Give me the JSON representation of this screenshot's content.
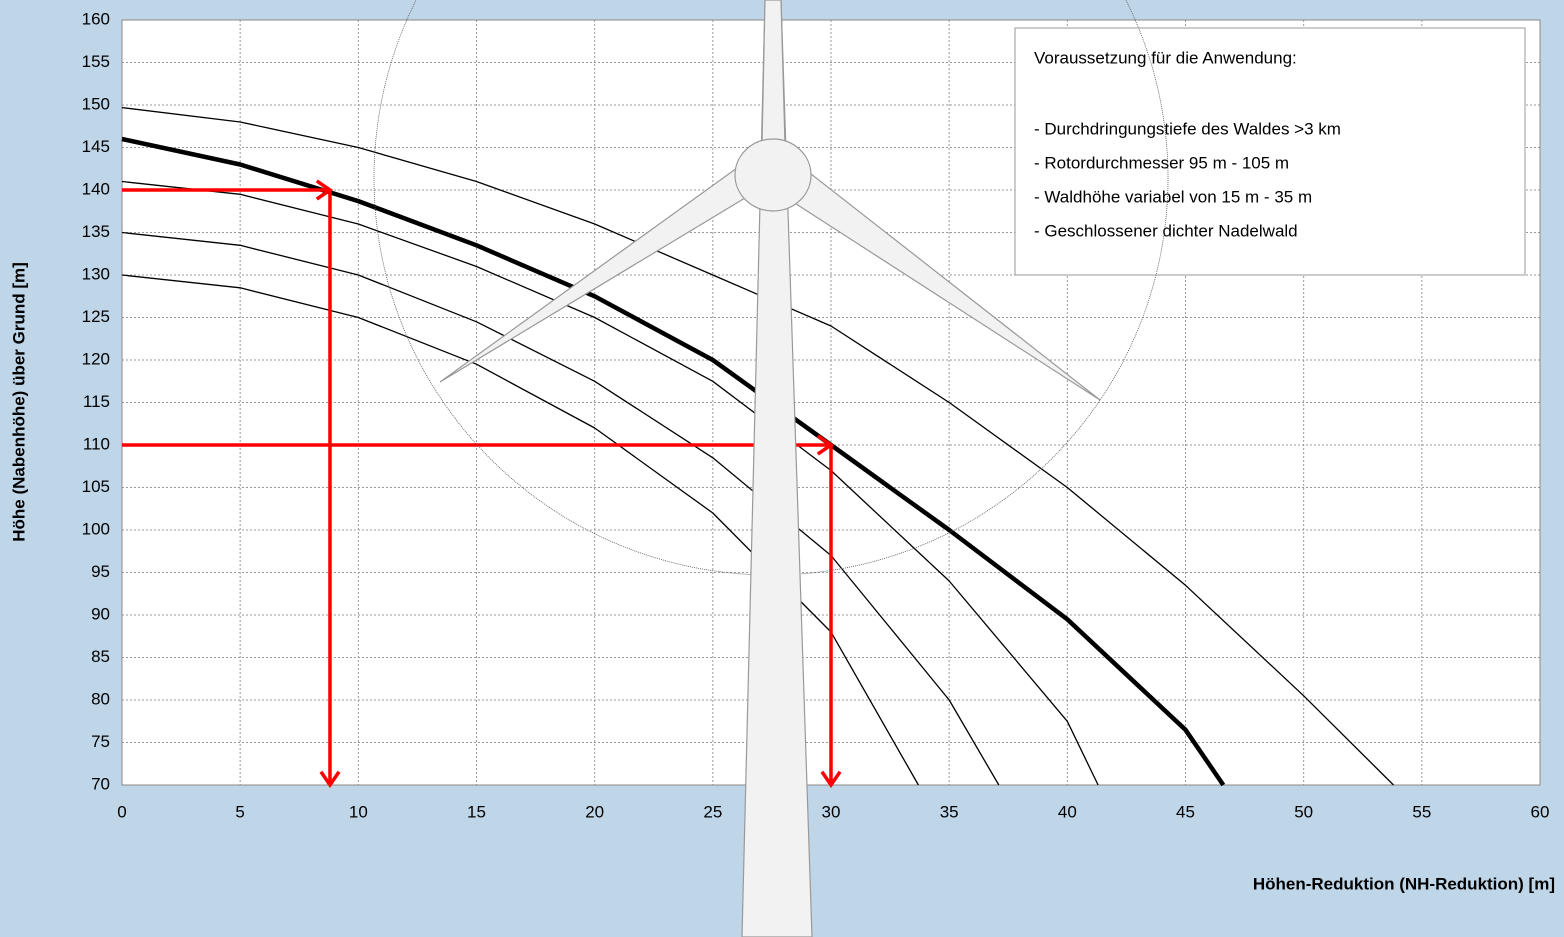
{
  "chart_data": {
    "type": "line",
    "x_label": "Höhen-Reduktion (NH-Reduktion)  [m]",
    "y_label": "Höhe (Nabenhöhe) über Grund [m]",
    "xlim": [
      0,
      60
    ],
    "xticks": [
      0,
      5,
      10,
      15,
      20,
      25,
      30,
      35,
      40,
      45,
      50,
      55,
      60
    ],
    "ylim": [
      70,
      160
    ],
    "yticks": [
      70,
      75,
      80,
      85,
      90,
      95,
      100,
      105,
      110,
      115,
      120,
      125,
      130,
      135,
      140,
      145,
      150,
      155,
      160
    ],
    "grid": true,
    "series": [
      {
        "color": "#000000",
        "width": 1.3,
        "x": [
          0,
          5,
          10,
          15,
          20,
          25,
          30,
          35,
          40,
          45,
          50,
          53.8
        ],
        "values": [
          149.7,
          148,
          145,
          141,
          136,
          130,
          124,
          115,
          105,
          93.5,
          80.5,
          70
        ]
      },
      {
        "color": "#000000",
        "width": 4.5,
        "x": [
          0,
          5,
          10,
          15,
          20,
          25,
          30,
          35,
          40,
          45,
          46.6
        ],
        "values": [
          146,
          143,
          138.7,
          133.5,
          127.5,
          120,
          110,
          100,
          89.5,
          76.5,
          70
        ]
      },
      {
        "color": "#000000",
        "width": 1.3,
        "x": [
          0,
          5,
          10,
          15,
          20,
          25,
          30,
          35,
          40,
          41.3
        ],
        "values": [
          141,
          139.5,
          136,
          131,
          125,
          117.5,
          107,
          94,
          77.5,
          70
        ]
      },
      {
        "color": "#000000",
        "width": 1.3,
        "x": [
          0,
          5,
          10,
          15,
          20,
          25,
          30,
          35,
          37.1
        ],
        "values": [
          135,
          133.5,
          130,
          124.5,
          117.5,
          108.5,
          97,
          80,
          70
        ]
      },
      {
        "color": "#000000",
        "width": 1.3,
        "x": [
          0,
          5,
          10,
          15,
          20,
          25,
          30,
          33.7
        ],
        "values": [
          130,
          128.5,
          125,
          119.5,
          112,
          102,
          88,
          70
        ]
      }
    ],
    "arrows": [
      {
        "color": "#ff0000",
        "x": [
          0,
          8.8,
          8.8
        ],
        "y": [
          140,
          140,
          70
        ]
      },
      {
        "color": "#ff0000",
        "x": [
          0,
          30,
          30
        ],
        "y": [
          110,
          110,
          70
        ]
      }
    ],
    "text_box": [
      "Voraussetzung für die Anwendung:",
      "- Durchdringungstiefe des Waldes >3 km",
      "- Rotordurchmesser  95 m - 105 m",
      "- Waldhöhe variabel von 15 m - 35 m",
      "- Geschlossener dichter Nadelwald"
    ]
  }
}
